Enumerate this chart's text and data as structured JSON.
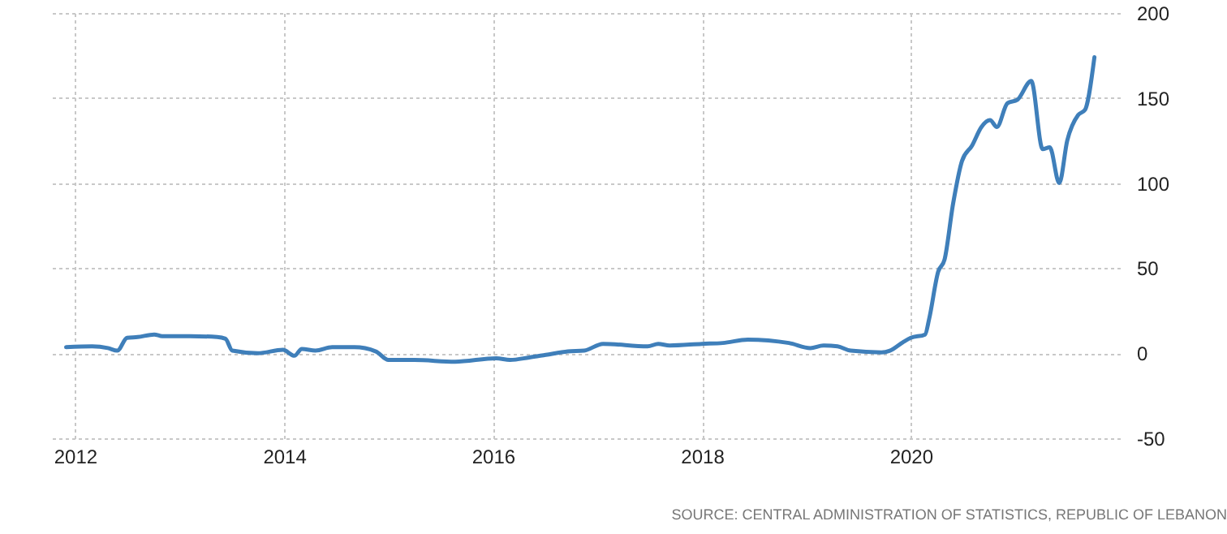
{
  "chart_data": {
    "type": "line",
    "annotations": [
      "SOURCE: CENTRAL ADMINISTRATION OF STATISTICS, REPUBLIC OF LEBANON"
    ],
    "x": [
      "2011-12-01",
      "2012-03-01",
      "2012-04-25",
      "2012-05-28",
      "2012-07-01",
      "2012-08-07",
      "2012-10-04",
      "2012-11-01",
      "2013-02-06",
      "2013-05-12",
      "2013-06-10",
      "2013-07-04",
      "2013-10-01",
      "2013-12-28",
      "2014-02-06",
      "2014-03-04",
      "2014-04-21",
      "2014-06-18",
      "2014-09-04",
      "2014-11-18",
      "2015-01-01",
      "2015-04-01",
      "2015-08-22",
      "2016-01-13",
      "2016-03-01",
      "2016-05-07",
      "2016-07-04",
      "2016-09-19",
      "2016-11-15",
      "2017-01-20",
      "2017-06-25",
      "2017-08-01",
      "2017-09-10",
      "2018-01-01",
      "2018-03-15",
      "2018-06-10",
      "2018-11-01",
      "2019-01-15",
      "2019-03-01",
      "2019-04-20",
      "2019-06-05",
      "2019-09-20",
      "2019-10-20",
      "2019-12-05",
      "2020-01-01",
      "2020-02-20",
      "2020-03-05",
      "2020-04-06",
      "2020-04-28",
      "2020-05-28",
      "2020-06-28",
      "2020-08-02",
      "2020-09-04",
      "2020-10-04",
      "2020-10-28",
      "2020-12-04",
      "2021-01-08",
      "2021-02-25",
      "2021-04-06",
      "2021-05-01",
      "2021-06-03",
      "2021-07-01",
      "2021-08-08",
      "2021-09-01",
      "2021-10-04"
    ],
    "series": [
      {
        "color": "#3f7fba",
        "values": [
          3.5,
          4,
          3,
          1.5,
          9,
          9.5,
          11,
          10,
          10,
          9.5,
          8.5,
          1.5,
          0,
          2,
          -1.5,
          2.5,
          1.5,
          3.5,
          3.5,
          1,
          -4,
          -4,
          -5,
          -3,
          -4,
          -2.5,
          -1,
          1,
          1.5,
          5.5,
          4,
          5.5,
          4.5,
          5.5,
          6,
          8,
          6,
          3,
          4.5,
          4,
          1.5,
          0.5,
          1.5,
          6.5,
          9,
          11,
          20,
          48,
          55,
          88,
          113,
          122,
          133,
          137,
          133,
          147,
          149,
          160,
          120,
          121,
          100,
          125,
          140,
          143,
          174
        ]
      }
    ],
    "xlim": [
      "2011-10",
      "2022-01"
    ],
    "xticks": [
      {
        "value": "2012",
        "label": "2012"
      },
      {
        "value": "2014",
        "label": "2014"
      },
      {
        "value": "2016",
        "label": "2016"
      },
      {
        "value": "2018",
        "label": "2018"
      },
      {
        "value": "2020",
        "label": "2020"
      }
    ],
    "ylim": [
      -50,
      200
    ],
    "yticks": [
      -50,
      0,
      50,
      100,
      150,
      200
    ],
    "grid": true,
    "line_style": "solid",
    "marker": "none"
  }
}
